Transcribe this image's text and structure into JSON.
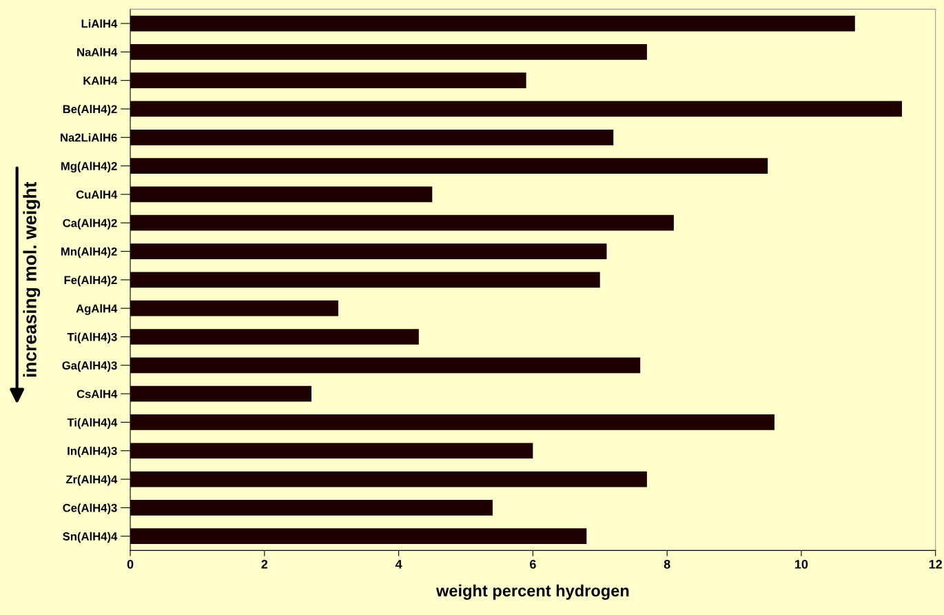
{
  "chart_data": {
    "type": "bar",
    "orientation": "horizontal",
    "categories": [
      "LiAlH4",
      "NaAlH4",
      "KAlH4",
      "Be(AlH4)2",
      "Na2LiAlH6",
      "Mg(AlH4)2",
      "CuAlH4",
      "Ca(AlH4)2",
      "Mn(AlH4)2",
      "Fe(AlH4)2",
      "AgAlH4",
      "Ti(AlH4)3",
      "Ga(AlH4)3",
      "CsAlH4",
      "Ti(AlH4)4",
      "In(AlH4)3",
      "Zr(AlH4)4",
      "Ce(AlH4)3",
      "Sn(AlH4)4"
    ],
    "values": [
      10.8,
      7.7,
      5.9,
      11.5,
      7.2,
      9.5,
      4.5,
      8.1,
      7.1,
      7.0,
      3.1,
      4.3,
      7.6,
      2.7,
      9.6,
      6.0,
      7.7,
      5.4,
      6.8
    ],
    "color": "#1e0000",
    "xlabel": "weight percent hydrogen",
    "ylabel": "increasing mol. weight",
    "xlim": [
      0,
      12
    ],
    "xticks": [
      0,
      2,
      4,
      6,
      8,
      10,
      12
    ],
    "grid": false,
    "legend": false
  }
}
